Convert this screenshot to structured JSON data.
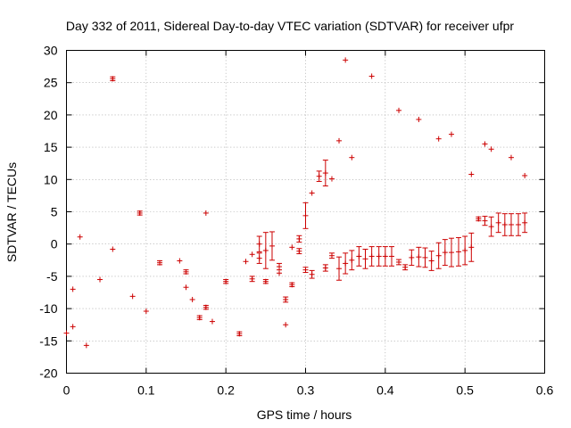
{
  "chart_data": {
    "type": "scatter",
    "title": "Day 332 of 2011, Sidereal Day-to-day VTEC variation (SDTVAR) for receiver ufpr",
    "xlabel": "GPS time / hours",
    "ylabel": "SDTVAR / TECUs",
    "xlim": [
      0,
      0.6
    ],
    "ylim": [
      -20,
      30
    ],
    "xticks": [
      0,
      0.1,
      0.2,
      0.3,
      0.4,
      0.5,
      0.6
    ],
    "xtick_labels": [
      "0",
      "0.1",
      "0.2",
      "0.3",
      "0.4",
      "0.5",
      "0.6"
    ],
    "yticks": [
      -20,
      -15,
      -10,
      -5,
      0,
      5,
      10,
      15,
      20,
      25,
      30
    ],
    "ytick_labels": [
      "-20",
      "-15",
      "-10",
      "-5",
      "0",
      "5",
      "10",
      "15",
      "20",
      "25",
      "30"
    ],
    "grid": true,
    "color": "#cc0000",
    "series": [
      {
        "name": "SDTVAR",
        "points": [
          {
            "x": 0.0,
            "y": -13.8,
            "err": 0
          },
          {
            "x": 0.008,
            "y": -12.8,
            "err": 0
          },
          {
            "x": 0.008,
            "y": -7.0,
            "err": 0
          },
          {
            "x": 0.017,
            "y": 1.1,
            "err": 0
          },
          {
            "x": 0.025,
            "y": -15.7,
            "err": 0
          },
          {
            "x": 0.042,
            "y": -5.5,
            "err": 0
          },
          {
            "x": 0.058,
            "y": -0.8,
            "err": 0
          },
          {
            "x": 0.058,
            "y": 25.6,
            "err": 0.3
          },
          {
            "x": 0.083,
            "y": -8.1,
            "err": 0
          },
          {
            "x": 0.092,
            "y": 4.8,
            "err": 0.3
          },
          {
            "x": 0.1,
            "y": -10.4,
            "err": 0
          },
          {
            "x": 0.117,
            "y": -2.9,
            "err": 0.3
          },
          {
            "x": 0.142,
            "y": -2.6,
            "err": 0
          },
          {
            "x": 0.15,
            "y": -4.3,
            "err": 0.3
          },
          {
            "x": 0.15,
            "y": -6.7,
            "err": 0
          },
          {
            "x": 0.158,
            "y": -8.6,
            "err": 0
          },
          {
            "x": 0.167,
            "y": -11.4,
            "err": 0.3
          },
          {
            "x": 0.175,
            "y": -9.8,
            "err": 0.3
          },
          {
            "x": 0.175,
            "y": 4.8,
            "err": 0
          },
          {
            "x": 0.183,
            "y": -12.0,
            "err": 0
          },
          {
            "x": 0.2,
            "y": -5.8,
            "err": 0.3
          },
          {
            "x": 0.217,
            "y": -13.9,
            "err": 0.3
          },
          {
            "x": 0.225,
            "y": -2.7,
            "err": 0
          },
          {
            "x": 0.233,
            "y": -5.4,
            "err": 0.4
          },
          {
            "x": 0.233,
            "y": -1.6,
            "err": 0
          },
          {
            "x": 0.242,
            "y": 0.0,
            "err": 1.2
          },
          {
            "x": 0.242,
            "y": -2.2,
            "err": 0.8
          },
          {
            "x": 0.25,
            "y": -1.0,
            "err": 2.8
          },
          {
            "x": 0.25,
            "y": -5.8,
            "err": 0.3
          },
          {
            "x": 0.258,
            "y": -0.3,
            "err": 2.2
          },
          {
            "x": 0.267,
            "y": -3.5,
            "err": 0.5
          },
          {
            "x": 0.267,
            "y": -4.5,
            "err": 0
          },
          {
            "x": 0.275,
            "y": -8.6,
            "err": 0.4
          },
          {
            "x": 0.275,
            "y": -12.5,
            "err": 0
          },
          {
            "x": 0.283,
            "y": -0.5,
            "err": 0
          },
          {
            "x": 0.283,
            "y": -6.3,
            "err": 0.3
          },
          {
            "x": 0.292,
            "y": 0.8,
            "err": 0.5
          },
          {
            "x": 0.292,
            "y": -1.1,
            "err": 0.4
          },
          {
            "x": 0.3,
            "y": 4.4,
            "err": 2.0
          },
          {
            "x": 0.3,
            "y": -4.0,
            "err": 0.4
          },
          {
            "x": 0.308,
            "y": 7.9,
            "err": 0
          },
          {
            "x": 0.308,
            "y": -4.7,
            "err": 0.6
          },
          {
            "x": 0.317,
            "y": 10.5,
            "err": 0.8
          },
          {
            "x": 0.325,
            "y": 11.0,
            "err": 2.0
          },
          {
            "x": 0.325,
            "y": -3.7,
            "err": 0.5
          },
          {
            "x": 0.333,
            "y": 10.1,
            "err": 0
          },
          {
            "x": 0.333,
            "y": -1.8,
            "err": 0.4
          },
          {
            "x": 0.342,
            "y": 16.0,
            "err": 0
          },
          {
            "x": 0.342,
            "y": -3.8,
            "err": 1.8
          },
          {
            "x": 0.35,
            "y": 28.5,
            "err": 0
          },
          {
            "x": 0.35,
            "y": -3.0,
            "err": 1.6
          },
          {
            "x": 0.358,
            "y": 13.4,
            "err": 0
          },
          {
            "x": 0.358,
            "y": -2.5,
            "err": 1.5
          },
          {
            "x": 0.367,
            "y": -1.9,
            "err": 1.5
          },
          {
            "x": 0.375,
            "y": -2.3,
            "err": 1.5
          },
          {
            "x": 0.383,
            "y": 26.0,
            "err": 0
          },
          {
            "x": 0.383,
            "y": -1.9,
            "err": 1.5
          },
          {
            "x": 0.392,
            "y": -1.9,
            "err": 1.5
          },
          {
            "x": 0.4,
            "y": -1.9,
            "err": 1.5
          },
          {
            "x": 0.408,
            "y": -1.9,
            "err": 1.5
          },
          {
            "x": 0.417,
            "y": 20.7,
            "err": 0
          },
          {
            "x": 0.417,
            "y": -2.8,
            "err": 0.4
          },
          {
            "x": 0.425,
            "y": -3.6,
            "err": 0.4
          },
          {
            "x": 0.433,
            "y": -2.1,
            "err": 1.2
          },
          {
            "x": 0.442,
            "y": 19.3,
            "err": 0
          },
          {
            "x": 0.442,
            "y": -2.0,
            "err": 1.5
          },
          {
            "x": 0.45,
            "y": -2.1,
            "err": 1.5
          },
          {
            "x": 0.458,
            "y": -2.6,
            "err": 1.5
          },
          {
            "x": 0.467,
            "y": 16.3,
            "err": 0
          },
          {
            "x": 0.467,
            "y": -1.8,
            "err": 2.0
          },
          {
            "x": 0.475,
            "y": -1.3,
            "err": 2.0
          },
          {
            "x": 0.483,
            "y": 17.0,
            "err": 0
          },
          {
            "x": 0.483,
            "y": -1.3,
            "err": 2.2
          },
          {
            "x": 0.492,
            "y": -1.2,
            "err": 2.2
          },
          {
            "x": 0.5,
            "y": -1.0,
            "err": 2.2
          },
          {
            "x": 0.508,
            "y": 10.8,
            "err": 0
          },
          {
            "x": 0.508,
            "y": -0.5,
            "err": 2.2
          },
          {
            "x": 0.517,
            "y": 3.9,
            "err": 0.3
          },
          {
            "x": 0.525,
            "y": 15.5,
            "err": 0
          },
          {
            "x": 0.525,
            "y": 3.6,
            "err": 0.7
          },
          {
            "x": 0.533,
            "y": 14.7,
            "err": 0
          },
          {
            "x": 0.533,
            "y": 2.7,
            "err": 1.5
          },
          {
            "x": 0.542,
            "y": 3.3,
            "err": 1.5
          },
          {
            "x": 0.55,
            "y": 3.0,
            "err": 1.7
          },
          {
            "x": 0.558,
            "y": 13.4,
            "err": 0
          },
          {
            "x": 0.558,
            "y": 3.0,
            "err": 1.7
          },
          {
            "x": 0.567,
            "y": 3.0,
            "err": 1.7
          },
          {
            "x": 0.575,
            "y": 10.6,
            "err": 0
          },
          {
            "x": 0.575,
            "y": 3.3,
            "err": 1.5
          }
        ]
      }
    ]
  }
}
